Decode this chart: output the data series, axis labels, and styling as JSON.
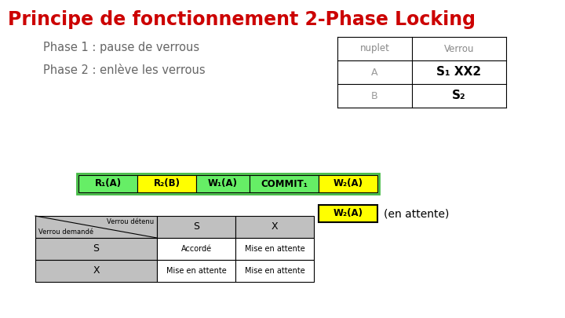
{
  "title": "Principe de fonctionnement 2-Phase Locking",
  "title_color": "#CC0000",
  "bg_color": "#FFFFFF",
  "phase1": "Phase 1 : pause de verrous",
  "phase2": "Phase 2 : enlève les verrous",
  "phase_color": "#666666",
  "table_nuplet_header": "nuplet",
  "table_verrou_header": "Verrou",
  "table_rows": [
    [
      "A",
      "S₁ XX2"
    ],
    [
      "B",
      "S₂"
    ]
  ],
  "timeline_items": [
    {
      "label": "R₁(A)",
      "color": "#66EE66"
    },
    {
      "label": "R₂(B)",
      "color": "#FFFF00"
    },
    {
      "label": "W₁(A)",
      "color": "#66EE66"
    },
    {
      "label": "COMMIT₁",
      "color": "#66EE66"
    },
    {
      "label": "W₂(A)",
      "color": "#FFFF00"
    }
  ],
  "waiting_label": "W₂(A)",
  "waiting_color": "#FFFF00",
  "waiting_text": "(en attente)",
  "lock_table_header_color": "#C0C0C0",
  "lock_table_cell_color": "#FFFFFF",
  "lock_table_row_color": "#C0C0C0",
  "lock_table_rows": [
    [
      "S",
      "Accordé",
      "Mise en attente"
    ],
    [
      "X",
      "Mise en attente",
      "Mise en attente"
    ]
  ]
}
